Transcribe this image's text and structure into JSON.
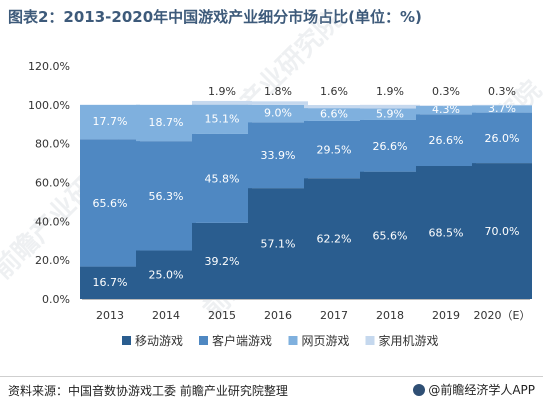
{
  "title": "图表2：2013-2020年中国游戏产业细分市场占比(单位：%)",
  "source": "资料来源：中国音数协游戏工委 前瞻产业研究院整理",
  "brand": "@前瞻经济学人APP",
  "watermark_text": "前瞻产业研究院",
  "colors": {
    "mobile": "#2a5d8f",
    "client": "#4f88c2",
    "web": "#7fb0de",
    "home": "#c5d8ee",
    "title": "#3d5a7a"
  },
  "chart_data": {
    "type": "bar",
    "stacked": true,
    "categories": [
      "2013",
      "2014",
      "2015",
      "2016",
      "2017",
      "2018",
      "2019",
      "2020（E）"
    ],
    "series": [
      {
        "name": "移动游戏",
        "values": [
          16.7,
          25.0,
          39.2,
          57.1,
          62.2,
          65.6,
          68.5,
          70.0
        ],
        "labels": [
          "16.7%",
          "25.0%",
          "39.2%",
          "57.1%",
          "62.2%",
          "65.6%",
          "68.5%",
          "70.0%"
        ]
      },
      {
        "name": "客户端游戏",
        "values": [
          65.6,
          56.3,
          45.8,
          33.9,
          29.5,
          26.6,
          26.6,
          26.0
        ],
        "labels": [
          "65.6%",
          "56.3%",
          "45.8%",
          "33.9%",
          "29.5%",
          "26.6%",
          "26.6%",
          "26.0%"
        ]
      },
      {
        "name": "网页游戏",
        "values": [
          17.7,
          18.7,
          15.1,
          9.0,
          6.6,
          5.9,
          4.3,
          3.7
        ],
        "labels": [
          "17.7%",
          "18.7%",
          "15.1%",
          "9.0%",
          "6.6%",
          "5.9%",
          "4.3%",
          "3.7%"
        ]
      },
      {
        "name": "家用机游戏",
        "values": [
          0,
          0,
          1.9,
          1.8,
          1.6,
          1.9,
          0.3,
          0.3
        ],
        "labels": [
          "",
          "",
          "1.9%",
          "1.8%",
          "1.6%",
          "1.9%",
          "0.3%",
          "0.3%"
        ]
      }
    ],
    "ylim": [
      0,
      120
    ],
    "yticks": [
      0,
      20,
      40,
      60,
      80,
      100,
      120
    ],
    "ytick_labels": [
      "0.0%",
      "20.0%",
      "40.0%",
      "60.0%",
      "80.0%",
      "100.0%",
      "120.0%"
    ],
    "legend_position": "bottom",
    "grid": false
  }
}
